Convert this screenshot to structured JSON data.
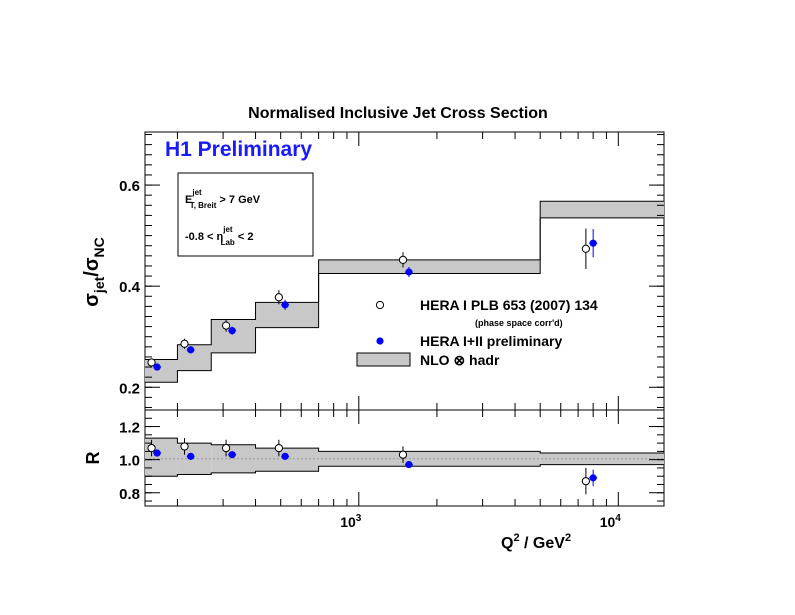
{
  "chart_data": [
    {
      "type": "scatter",
      "title": "Normalised Inclusive Jet Cross Section",
      "subtitle": "H1 Preliminary",
      "xlabel": "Q",
      "xlabel_sup": "2",
      "xlabel_rest": " / GeV",
      "xlabel_sup2": "2",
      "ylabel_main": "σ",
      "ylabel_sub": "jet",
      "ylabel_slash": "/σ",
      "ylabel_sub2": "NC",
      "x_scale": "log",
      "xlim": [
        150,
        15000
      ],
      "ylim": [
        0.155,
        0.705
      ],
      "y_ticks": [
        "0.2",
        "0.4",
        "0.6"
      ],
      "cuts": {
        "line1_main": "E",
        "line1_sup": "jet",
        "line1_sub": "T, Breit",
        "line1_rest": " > 7 GeV",
        "line2_pre": "-0.8 < η",
        "line2_sup": "jet",
        "line2_sub": "Lab",
        "line2_rest": " < 2"
      },
      "legend": {
        "placement": "center-right",
        "items": [
          {
            "label": "HERA I PLB 653 (2007) 134",
            "sublabel": "(phase space corr'd)",
            "marker": "open-circle"
          },
          {
            "label": "HERA I+II preliminary",
            "marker": "filled-circle",
            "color": "#0000ff"
          },
          {
            "label": "NLO ⊗ hadr",
            "marker": "band",
            "color": "#c8c8c8"
          }
        ]
      },
      "series": [
        {
          "name": "HERA I PLB 653 (2007) 134",
          "x": [
            159,
            213,
            308,
            492,
            1480,
            7500
          ],
          "y": [
            0.249,
            0.286,
            0.322,
            0.378,
            0.452,
            0.474
          ],
          "yerr": [
            0.008,
            0.01,
            0.012,
            0.014,
            0.015,
            0.04
          ]
        },
        {
          "name": "HERA I+II preliminary",
          "x": [
            167,
            225,
            325,
            520,
            1560,
            8000
          ],
          "y": [
            0.24,
            0.274,
            0.312,
            0.363,
            0.428,
            0.485
          ],
          "yerr": [
            0.006,
            0.007,
            0.008,
            0.01,
            0.01,
            0.028
          ]
        },
        {
          "name": "NLO ⊗ hadr",
          "bins": [
            [
              150,
              200
            ],
            [
              200,
              270
            ],
            [
              270,
              400
            ],
            [
              400,
              700
            ],
            [
              700,
              5000
            ],
            [
              5000,
              15000
            ]
          ],
          "y_low": [
            0.21,
            0.233,
            0.268,
            0.318,
            0.425,
            0.535
          ],
          "y_high": [
            0.255,
            0.284,
            0.334,
            0.368,
            0.452,
            0.568
          ]
        }
      ]
    },
    {
      "type": "scatter",
      "ylabel": "R",
      "x_scale": "log",
      "xlim": [
        150,
        15000
      ],
      "ylim": [
        0.72,
        1.3
      ],
      "x_ticks": [
        {
          "base": "10",
          "exp": "3"
        },
        {
          "base": "10",
          "exp": "4"
        }
      ],
      "y_ticks": [
        "0.8",
        "1.0",
        "1.2"
      ],
      "series": [
        {
          "name": "HERA I PLB 653 (2007) 134",
          "x": [
            159,
            213,
            308,
            492,
            1480,
            7500
          ],
          "y": [
            1.07,
            1.08,
            1.07,
            1.07,
            1.03,
            0.87
          ],
          "yerr": [
            0.05,
            0.05,
            0.05,
            0.05,
            0.05,
            0.08
          ]
        },
        {
          "name": "HERA I+II preliminary",
          "x": [
            167,
            225,
            325,
            520,
            1560,
            8000
          ],
          "y": [
            1.04,
            1.02,
            1.03,
            1.02,
            0.97,
            0.89
          ],
          "yerr": [
            0.02,
            0.02,
            0.02,
            0.02,
            0.02,
            0.05
          ]
        },
        {
          "name": "NLO ⊗ hadr",
          "bins": [
            [
              150,
              200
            ],
            [
              200,
              270
            ],
            [
              270,
              400
            ],
            [
              400,
              700
            ],
            [
              700,
              5000
            ],
            [
              5000,
              15000
            ]
          ],
          "y_low": [
            0.9,
            0.91,
            0.92,
            0.93,
            0.96,
            0.97
          ],
          "y_high": [
            1.13,
            1.1,
            1.09,
            1.07,
            1.05,
            1.04
          ]
        }
      ]
    }
  ]
}
